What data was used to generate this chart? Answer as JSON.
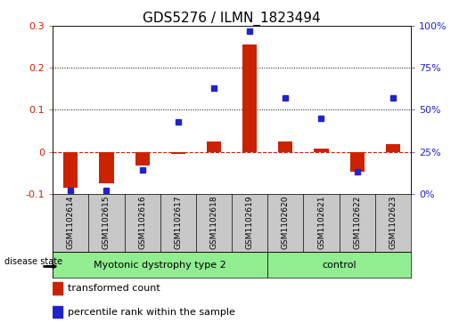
{
  "title": "GDS5276 / ILMN_1823494",
  "samples": [
    "GSM1102614",
    "GSM1102615",
    "GSM1102616",
    "GSM1102617",
    "GSM1102618",
    "GSM1102619",
    "GSM1102620",
    "GSM1102621",
    "GSM1102622",
    "GSM1102623"
  ],
  "transformed_count": [
    -0.085,
    -0.075,
    -0.033,
    -0.005,
    0.025,
    0.255,
    0.025,
    0.007,
    -0.048,
    0.018
  ],
  "percentile_rank_pct": [
    2,
    2,
    14,
    43,
    63,
    97,
    57,
    45,
    13,
    57
  ],
  "disease_groups": [
    {
      "label": "Myotonic dystrophy type 2",
      "n": 6,
      "color": "#90EE90"
    },
    {
      "label": "control",
      "n": 4,
      "color": "#90EE90"
    }
  ],
  "group_disease_state_label": "disease state",
  "left_ylim": [
    -0.1,
    0.3
  ],
  "right_ylim": [
    0,
    100
  ],
  "left_yticks": [
    -0.1,
    0.0,
    0.1,
    0.2,
    0.3
  ],
  "right_yticks": [
    0,
    25,
    50,
    75,
    100
  ],
  "left_yticklabels": [
    "-0.1",
    "0",
    "0.1",
    "0.2",
    "0.3"
  ],
  "right_yticklabels": [
    "0%",
    "25%",
    "50%",
    "75%",
    "100%"
  ],
  "bar_color": "#CC2200",
  "dot_color": "#2222CC",
  "zero_line_color": "#CC2200",
  "dotted_line_color": "#000000",
  "legend_bar_label": "transformed count",
  "legend_dot_label": "percentile rank within the sample",
  "bg_color": "#FFFFFF",
  "plot_bg_color": "#FFFFFF",
  "label_bg_color": "#C8C8C8",
  "title_fontsize": 11,
  "tick_fontsize": 8,
  "sample_fontsize": 6.5,
  "legend_fontsize": 8,
  "disease_fontsize": 8
}
